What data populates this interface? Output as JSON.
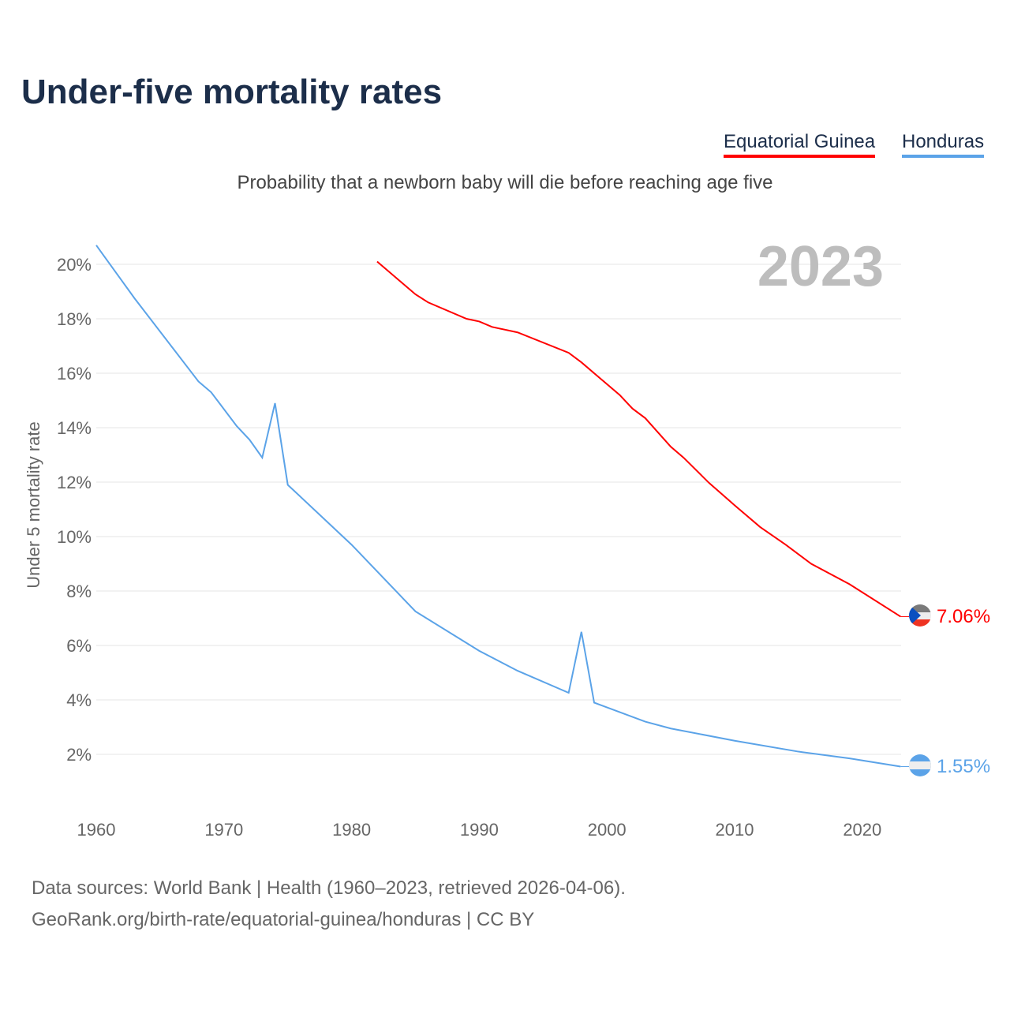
{
  "chart_data": {
    "type": "line",
    "title": "Under-five mortality rates",
    "subtitle": "Probability that a newborn baby will die before reaching age five",
    "ylabel": "Under 5 mortality rate",
    "xlabel": "",
    "year_label": "2023",
    "xlim": [
      1960,
      2023
    ],
    "ylim": [
      0,
      21
    ],
    "xticks": [
      1960,
      1970,
      1980,
      1990,
      2000,
      2010,
      2020
    ],
    "yticks": [
      2,
      4,
      6,
      8,
      10,
      12,
      14,
      16,
      18,
      20
    ],
    "ytick_labels": [
      "2%",
      "4%",
      "6%",
      "8%",
      "10%",
      "12%",
      "14%",
      "16%",
      "18%",
      "20%"
    ],
    "legend_position": "top-right",
    "series": [
      {
        "name": "Equatorial Guinea",
        "color": "#ff0000",
        "end_label": "7.06%",
        "x": [
          1982,
          1985,
          1986,
          1989,
          1990,
          1991,
          1993,
          1997,
          1998,
          2001,
          2002,
          2003,
          2005,
          2006,
          2008,
          2010,
          2012,
          2014,
          2016,
          2019,
          2023
        ],
        "y": [
          20.1,
          18.9,
          18.6,
          18.0,
          17.9,
          17.7,
          17.5,
          16.75,
          16.4,
          15.2,
          14.7,
          14.35,
          13.3,
          12.9,
          11.97,
          11.15,
          10.35,
          9.7,
          9.0,
          8.25,
          7.06
        ]
      },
      {
        "name": "Honduras",
        "color": "#5ba3e8",
        "end_label": "1.55%",
        "x": [
          1960,
          1962,
          1963,
          1968,
          1969,
          1971,
          1972,
          1973,
          1974,
          1975,
          1980,
          1985,
          1990,
          1993,
          1997,
          1998,
          1999,
          2003,
          2005,
          2010,
          2015,
          2019,
          2023
        ],
        "y": [
          20.7,
          19.4,
          18.75,
          15.7,
          15.3,
          14.06,
          13.56,
          12.9,
          14.9,
          11.9,
          9.7,
          7.25,
          5.8,
          5.07,
          4.26,
          6.5,
          3.9,
          3.2,
          2.95,
          2.5,
          2.1,
          1.85,
          1.55
        ]
      }
    ]
  },
  "footer": {
    "line1": "Data sources: World Bank | Health (1960–2023, retrieved 2026-04-06).",
    "line2": "GeoRank.org/birth-rate/equatorial-guinea/honduras | CC BY"
  }
}
